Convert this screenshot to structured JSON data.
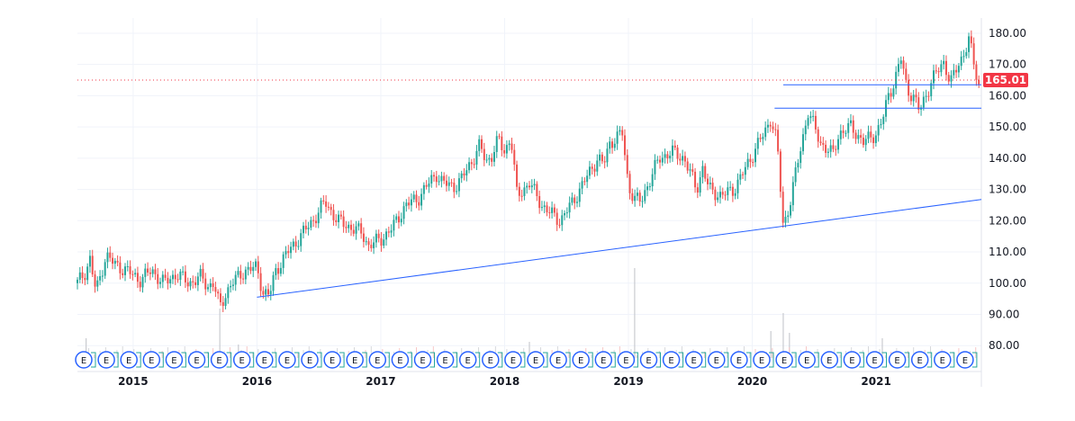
{
  "chart_data": {
    "type": "candlestick",
    "x_ticks": [
      "2015",
      "2016",
      "2017",
      "2018",
      "2019",
      "2020",
      "2021"
    ],
    "y_ticks": [
      "80.00",
      "90.00",
      "100.00",
      "110.00",
      "120.00",
      "130.00",
      "140.00",
      "150.00",
      "160.00",
      "170.00",
      "180.00"
    ],
    "ylim": [
      72,
      182
    ],
    "xlim": [
      2014.55,
      2021.85
    ],
    "last_price": "165.01",
    "last_price_value": 165.01,
    "price_points": [
      [
        2014.55,
        100
      ],
      [
        2014.62,
        104
      ],
      [
        2014.65,
        108
      ],
      [
        2014.7,
        97
      ],
      [
        2014.78,
        109
      ],
      [
        2014.85,
        106
      ],
      [
        2014.95,
        104
      ],
      [
        2015.05,
        101
      ],
      [
        2015.15,
        104
      ],
      [
        2015.25,
        100
      ],
      [
        2015.35,
        103
      ],
      [
        2015.45,
        100
      ],
      [
        2015.55,
        102
      ],
      [
        2015.6,
        99
      ],
      [
        2015.65,
        100
      ],
      [
        2015.7,
        92
      ],
      [
        2015.75,
        97
      ],
      [
        2015.8,
        100
      ],
      [
        2015.9,
        104
      ],
      [
        2016.0,
        105
      ],
      [
        2016.05,
        97
      ],
      [
        2016.1,
        96
      ],
      [
        2016.15,
        104
      ],
      [
        2016.25,
        110
      ],
      [
        2016.35,
        115
      ],
      [
        2016.45,
        120
      ],
      [
        2016.55,
        126
      ],
      [
        2016.65,
        120
      ],
      [
        2016.75,
        118
      ],
      [
        2016.85,
        116
      ],
      [
        2016.9,
        112
      ],
      [
        2017.0,
        114
      ],
      [
        2017.1,
        118
      ],
      [
        2017.2,
        125
      ],
      [
        2017.3,
        127
      ],
      [
        2017.35,
        130
      ],
      [
        2017.45,
        135
      ],
      [
        2017.5,
        132
      ],
      [
        2017.6,
        131
      ],
      [
        2017.65,
        133
      ],
      [
        2017.7,
        137
      ],
      [
        2017.75,
        140
      ],
      [
        2017.8,
        144
      ],
      [
        2017.85,
        139
      ],
      [
        2017.9,
        141
      ],
      [
        2017.95,
        146
      ],
      [
        2018.0,
        142
      ],
      [
        2018.05,
        147
      ],
      [
        2018.1,
        128
      ],
      [
        2018.2,
        132
      ],
      [
        2018.3,
        125
      ],
      [
        2018.35,
        123
      ],
      [
        2018.45,
        120
      ],
      [
        2018.55,
        126
      ],
      [
        2018.65,
        133
      ],
      [
        2018.75,
        140
      ],
      [
        2018.8,
        138
      ],
      [
        2018.85,
        145
      ],
      [
        2018.95,
        148
      ],
      [
        2019.0,
        131
      ],
      [
        2019.05,
        127
      ],
      [
        2019.1,
        126
      ],
      [
        2019.15,
        131
      ],
      [
        2019.25,
        140
      ],
      [
        2019.35,
        142
      ],
      [
        2019.45,
        140
      ],
      [
        2019.5,
        135
      ],
      [
        2019.55,
        130
      ],
      [
        2019.6,
        137
      ],
      [
        2019.65,
        130
      ],
      [
        2019.75,
        128
      ],
      [
        2019.85,
        130
      ],
      [
        2019.95,
        137
      ],
      [
        2020.05,
        145
      ],
      [
        2020.1,
        148
      ],
      [
        2020.15,
        153
      ],
      [
        2020.2,
        145
      ],
      [
        2020.25,
        118
      ],
      [
        2020.3,
        125
      ],
      [
        2020.4,
        145
      ],
      [
        2020.45,
        155
      ],
      [
        2020.5,
        150
      ],
      [
        2020.55,
        145
      ],
      [
        2020.65,
        141
      ],
      [
        2020.7,
        148
      ],
      [
        2020.8,
        150
      ],
      [
        2020.9,
        145
      ],
      [
        2021.0,
        148
      ],
      [
        2021.05,
        152
      ],
      [
        2021.1,
        160
      ],
      [
        2021.15,
        165
      ],
      [
        2021.2,
        172
      ],
      [
        2021.25,
        162
      ],
      [
        2021.3,
        160
      ],
      [
        2021.35,
        155
      ],
      [
        2021.45,
        165
      ],
      [
        2021.55,
        171
      ],
      [
        2021.6,
        164
      ],
      [
        2021.7,
        173
      ],
      [
        2021.75,
        178
      ],
      [
        2021.8,
        168
      ],
      [
        2021.85,
        160
      ],
      [
        2021.9,
        158
      ],
      [
        2021.95,
        162
      ],
      [
        2022.0,
        165
      ],
      [
        2022.05,
        166
      ]
    ],
    "volume_spikes": [
      [
        2015.7,
        0.55
      ],
      [
        2018.2,
        0.18
      ],
      [
        2019.05,
        1.0
      ],
      [
        2020.15,
        0.3
      ],
      [
        2020.25,
        0.5
      ],
      [
        2020.3,
        0.28
      ],
      [
        2014.62,
        0.22
      ],
      [
        2015.85,
        0.15
      ],
      [
        2021.05,
        0.22
      ]
    ],
    "trend_lines": [
      {
        "from": [
          2016.0,
          95.5
        ],
        "to": [
          2021.85,
          126.8
        ],
        "color": "#2962ff"
      },
      {
        "from": [
          2020.18,
          156.0
        ],
        "to": [
          2021.85,
          156.0
        ],
        "color": "#2962ff"
      },
      {
        "from": [
          2020.25,
          163.5
        ],
        "to": [
          2021.85,
          163.5
        ],
        "color": "#2962ff"
      }
    ],
    "last_price_line_color": "#f23645",
    "up_color": "#26a69a",
    "down_color": "#ef5350",
    "event_marker_label": "E",
    "event_marker_color": "#2962ff",
    "event_marker_count": 40,
    "grid": true
  }
}
